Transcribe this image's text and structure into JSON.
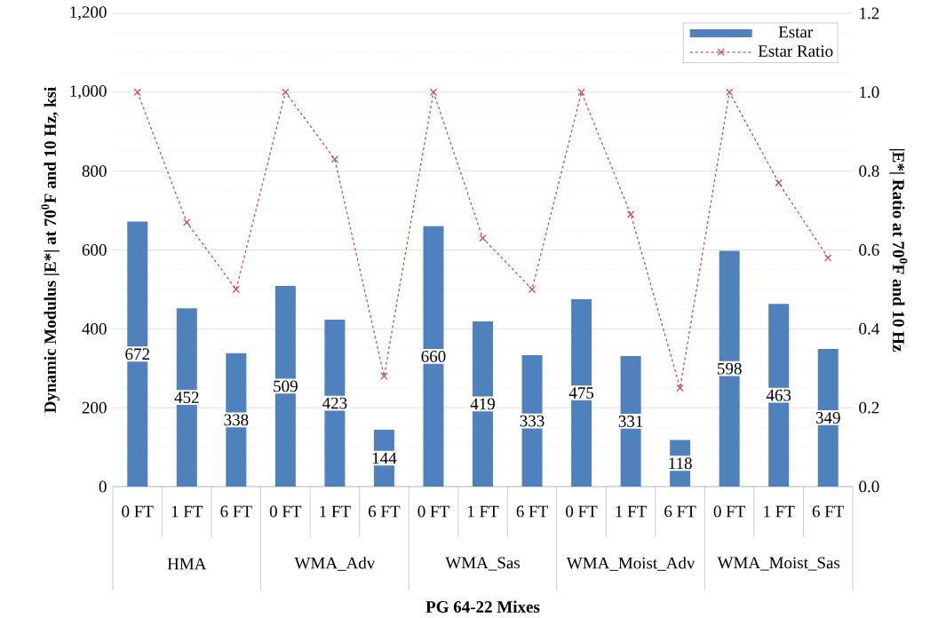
{
  "chart_data": {
    "type": "bar",
    "categories": [
      "0 FT",
      "1 FT",
      "6 FT",
      "0 FT",
      "1 FT",
      "6 FT",
      "0 FT",
      "1 FT",
      "6 FT",
      "0 FT",
      "1 FT",
      "6 FT",
      "0 FT",
      "1 FT",
      "6 FT"
    ],
    "annotations": [
      "HMA",
      "WMA_Adv",
      "WMA_Sas",
      "WMA_Moist_Adv",
      "WMA_Moist_Sas"
    ],
    "series": [
      {
        "name": "Estar",
        "color": "#4f81bd",
        "values": [
          672,
          452,
          338,
          509,
          423,
          144,
          660,
          419,
          333,
          475,
          331,
          118,
          598,
          463,
          349
        ],
        "value_labels": [
          "672",
          "452",
          "338",
          "509",
          "423",
          "144",
          "660",
          "419",
          "333",
          "475",
          "331",
          "118",
          "598",
          "463",
          "349"
        ]
      },
      {
        "name": "Estar Ratio",
        "type": "line",
        "axis": "y2",
        "color": "#c0504d",
        "marker": "cross",
        "line_style": "dashed",
        "values": [
          1.0,
          0.67,
          0.5,
          1.0,
          0.83,
          0.28,
          1.0,
          0.63,
          0.5,
          1.0,
          0.69,
          0.25,
          1.0,
          0.77,
          0.58
        ]
      }
    ],
    "xlabel": "PG 64-22 Mixes",
    "ylabel": "Dynamic Modulus |E*| at 70$^{0}$F and 10 Hz, ksi",
    "y2label": "|E*| Ratio at 70$^{0}$F and 10 Hz",
    "ylim": [
      0,
      1200
    ],
    "yticks": [
      0,
      200,
      400,
      600,
      800,
      {
        "value": 1000,
        "label": "1,000"
      },
      {
        "value": 1200,
        "label": "1,200"
      }
    ],
    "y2lim": [
      0,
      1.2
    ],
    "y2ticks": [
      {
        "value": 0,
        "label": "0.0"
      },
      {
        "value": 0.2,
        "label": "0.2"
      },
      {
        "value": 0.4,
        "label": "0.4"
      },
      {
        "value": 0.6,
        "label": "0.6"
      },
      {
        "value": 0.8,
        "label": "0.8"
      },
      {
        "value": 1.0,
        "label": "1.0"
      },
      {
        "value": 1.2,
        "label": "1.2"
      }
    ],
    "grid": true,
    "legend": "top right"
  }
}
